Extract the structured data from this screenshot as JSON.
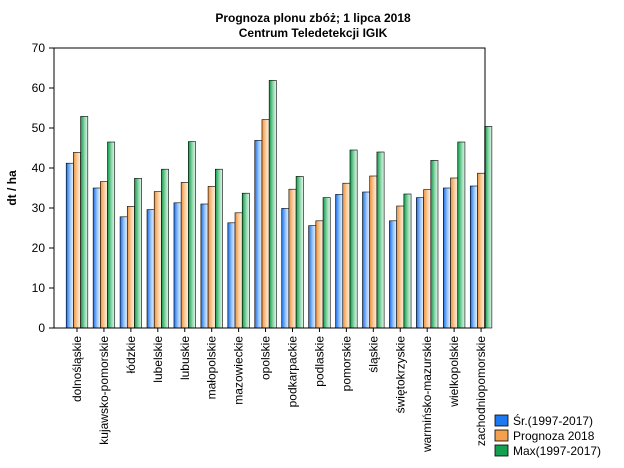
{
  "chart_data": {
    "type": "bar",
    "title": "Prognoza plonu zbóż; 1 lipca 2018",
    "subtitle": "Centrum Teledetekcji IGIK",
    "xlabel": "",
    "ylabel": "dt / ha",
    "ylim": [
      0,
      70
    ],
    "yticks": [
      "0",
      "10",
      "20",
      "30",
      "40",
      "50",
      "60",
      "70"
    ],
    "grid": false,
    "legend_position": "bottom-right",
    "categories": [
      "dolnośląskie",
      "kujawsko-pomorskie",
      "łódzkie",
      "lubelskie",
      "lubuskie",
      "małopolskie",
      "mazowieckie",
      "opolskie",
      "podkarpackie",
      "podlaskie",
      "pomorskie",
      "śląskie",
      "świętokrzyskie",
      "warmińsko-mazurskie",
      "wielkopolskie",
      "zachodniopomorskie"
    ],
    "series": [
      {
        "name": "Śr.(1997-2017)",
        "color": "#1e78f0",
        "values": [
          41.2,
          35.0,
          27.8,
          29.6,
          31.3,
          31.0,
          26.3,
          46.9,
          29.9,
          25.6,
          33.4,
          34.0,
          26.8,
          32.6,
          35.0,
          35.5
        ]
      },
      {
        "name": "Prognoza 2018",
        "color": "#f5a050",
        "values": [
          43.9,
          36.6,
          30.4,
          34.1,
          36.4,
          35.4,
          28.8,
          52.1,
          34.7,
          26.8,
          36.2,
          38.0,
          30.5,
          34.6,
          37.5,
          38.7
        ]
      },
      {
        "name": "Max(1997-2017)",
        "color": "#14a050",
        "values": [
          52.9,
          46.5,
          37.4,
          39.7,
          46.6,
          39.7,
          33.7,
          61.9,
          37.9,
          32.6,
          44.5,
          44.0,
          33.5,
          41.9,
          46.5,
          50.4
        ]
      }
    ]
  }
}
